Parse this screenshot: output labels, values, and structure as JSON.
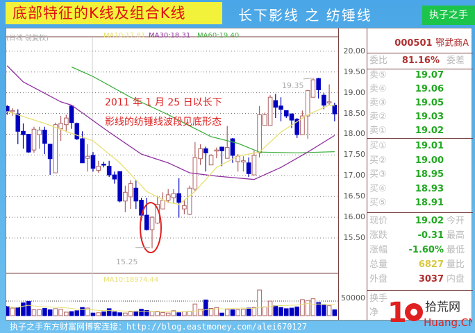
{
  "header": {
    "title": "底部特征的K线及组合K线",
    "subtitle": "长下影线 之 纺锤线",
    "tag_button": "执子之手"
  },
  "chart_header": {
    "period": "(日线 前复权)",
    "ma10": "MA10:17.81",
    "ma30": "MA30:18.31",
    "ma60": "MA60:19.40",
    "vol_ma": "MA10:18974.44"
  },
  "annotation": {
    "line1": "2011 年 1 月 25 日以长下",
    "line2": "影线的纺锤线波段见底形态",
    "low_label": "15.25",
    "high_label": "19.35"
  },
  "quote": {
    "code": "000501",
    "name": "鄂武商A",
    "wb_label": "委比",
    "wb_value": "81.16%",
    "wc_label": "委差",
    "sell": [
      {
        "label": "卖⑤",
        "price": "19.07"
      },
      {
        "label": "卖④",
        "price": "19.06"
      },
      {
        "label": "卖③",
        "price": "19.05"
      },
      {
        "label": "卖②",
        "price": "19.03"
      },
      {
        "label": "卖①",
        "price": "19.02"
      }
    ],
    "buy": [
      {
        "label": "买①",
        "price": "19.01"
      },
      {
        "label": "买②",
        "price": "19.00"
      },
      {
        "label": "买③",
        "price": "18.95"
      },
      {
        "label": "买④",
        "price": "18.93"
      },
      {
        "label": "买⑤",
        "price": "18.91"
      }
    ],
    "stats": [
      {
        "label": "现价",
        "value": "19.02",
        "right": "今开",
        "color": "#21a821"
      },
      {
        "label": "涨跌",
        "value": "-0.31",
        "right": "最高",
        "color": "#21a821"
      },
      {
        "label": "涨幅",
        "value": "-1.60%",
        "right": "最低",
        "color": "#21a821"
      },
      {
        "label": "总量",
        "value": "6827",
        "right": "量比",
        "color": "#d8c840"
      },
      {
        "label": "外盘",
        "value": "3037",
        "right": "内盘",
        "color": "#b03030"
      }
    ],
    "extra": [
      {
        "label": "换手"
      },
      {
        "label": "净"
      }
    ]
  },
  "footer": "执子之手东方财富网博客连接：http://blog.eastmoney.com/alei670127",
  "watermark": "10 拾荒网 Huang.CN",
  "colors": {
    "up": "#b06060",
    "down": "#0000c0",
    "ma10": "#e8e070",
    "ma30": "#9030a0",
    "ma60": "#40b040",
    "annotation": "#e02020"
  },
  "chart_data": {
    "type": "candlestick",
    "ylim": [
      15.2,
      20.08
    ],
    "yticks": [
      "20.00",
      "19.50",
      "19.00",
      "18.50",
      "18.00",
      "17.50",
      "17.00",
      "16.50",
      "16.00",
      "15.50"
    ],
    "vol_tick": "50000",
    "grid": true,
    "ohlc": [
      [
        18.67,
        18.7,
        18.47,
        18.56
      ],
      [
        18.57,
        18.63,
        18.44,
        18.57
      ],
      [
        18.49,
        18.6,
        17.76,
        18.07
      ],
      [
        18.07,
        18.26,
        17.65,
        17.99
      ],
      [
        18.0,
        18.0,
        17.55,
        17.57
      ],
      [
        17.62,
        18.18,
        17.55,
        18.12
      ],
      [
        17.99,
        18.18,
        17.65,
        18.1
      ],
      [
        18.1,
        18.18,
        17.52,
        17.78
      ],
      [
        17.76,
        17.76,
        17.02,
        17.41
      ],
      [
        17.07,
        18.28,
        17.07,
        18.23
      ],
      [
        18.13,
        18.44,
        17.84,
        18.26
      ],
      [
        18.23,
        18.47,
        18.05,
        18.39
      ],
      [
        18.68,
        18.7,
        18.13,
        18.28
      ],
      [
        18.26,
        18.28,
        17.86,
        17.89
      ],
      [
        17.89,
        18.07,
        17.31,
        17.31
      ],
      [
        17.42,
        17.76,
        17.1,
        17.47
      ],
      [
        17.49,
        17.57,
        17.1,
        17.18
      ],
      [
        17.13,
        17.36,
        17.07,
        17.23
      ],
      [
        17.28,
        17.34,
        17.2,
        17.26
      ],
      [
        17.23,
        17.36,
        16.97,
        17.02
      ],
      [
        17.02,
        17.1,
        16.81,
        16.92
      ],
      [
        17.1,
        17.1,
        16.36,
        16.39
      ],
      [
        16.39,
        16.76,
        16.12,
        16.6
      ],
      [
        16.49,
        16.89,
        16.2,
        16.81
      ],
      [
        16.7,
        16.89,
        16.2,
        16.39
      ],
      [
        16.41,
        16.47,
        15.92,
        16.05
      ],
      [
        16.05,
        16.47,
        15.68,
        15.7
      ],
      [
        15.7,
        16.02,
        15.25,
        16.0
      ],
      [
        15.86,
        16.52,
        15.84,
        16.31
      ],
      [
        16.2,
        16.6,
        16.2,
        16.41
      ],
      [
        16.41,
        16.68,
        16.34,
        16.54
      ],
      [
        16.47,
        16.68,
        16.34,
        16.57
      ],
      [
        16.57,
        16.94,
        15.99,
        16.36
      ],
      [
        16.2,
        16.41,
        16.07,
        16.28
      ],
      [
        16.07,
        16.76,
        16.05,
        16.7
      ],
      [
        16.68,
        17.81,
        16.63,
        17.44
      ],
      [
        17.41,
        17.76,
        17.26,
        17.65
      ],
      [
        17.65,
        17.7,
        17.1,
        17.55
      ],
      [
        17.26,
        17.52,
        17.26,
        17.49
      ],
      [
        17.6,
        17.68,
        17.42,
        17.62
      ],
      [
        17.69,
        17.69,
        17.23,
        17.6
      ],
      [
        17.42,
        18.2,
        17.42,
        17.68
      ],
      [
        17.89,
        17.91,
        17.31,
        17.49
      ],
      [
        17.34,
        17.52,
        17.1,
        17.47
      ],
      [
        17.33,
        17.47,
        17.1,
        17.36
      ],
      [
        17.31,
        17.44,
        16.97,
        17.05
      ],
      [
        17.02,
        17.6,
        17.02,
        17.49
      ],
      [
        17.55,
        18.68,
        17.44,
        18.47
      ],
      [
        18.21,
        18.52,
        18.21,
        18.47
      ],
      [
        18.21,
        18.94,
        18.21,
        18.89
      ],
      [
        18.81,
        18.97,
        18.39,
        18.65
      ],
      [
        18.68,
        18.89,
        18.31,
        18.6
      ],
      [
        18.57,
        18.57,
        18.39,
        18.44
      ],
      [
        18.49,
        18.49,
        18.15,
        18.34
      ],
      [
        18.36,
        18.39,
        17.91,
        17.99
      ],
      [
        17.99,
        18.57,
        17.99,
        18.44
      ],
      [
        18.44,
        19.07,
        17.89,
        19.05
      ],
      [
        18.89,
        19.35,
        18.89,
        19.31
      ],
      [
        19.34,
        19.36,
        18.86,
        19.07
      ],
      [
        18.94,
        18.99,
        18.6,
        18.7
      ],
      [
        18.76,
        19.2,
        18.7,
        18.78
      ],
      [
        18.7,
        18.76,
        18.31,
        18.49
      ]
    ],
    "volume": [
      32000,
      26000,
      28000,
      44000,
      49000,
      20000,
      21000,
      25000,
      20000,
      24000,
      22000,
      12000,
      14000,
      17000,
      28000,
      26000,
      9000,
      10000,
      13000,
      24000,
      13000,
      10000,
      9000,
      13000,
      15000,
      22000,
      18000,
      15000,
      13000,
      11000,
      9000,
      17000,
      10000,
      14000,
      15000,
      40000,
      22000,
      54000,
      25000,
      28000,
      9000,
      22000,
      20000,
      20000,
      22000,
      26000,
      28000,
      88000,
      30000,
      50000,
      34000,
      28000,
      24000,
      26000,
      30000,
      55000,
      52000,
      58000,
      45000,
      36000,
      34000,
      20000
    ],
    "ma10": [
      [
        1,
        18.55
      ],
      [
        8,
        18.26
      ],
      [
        13,
        18.02
      ],
      [
        17,
        17.84
      ],
      [
        22,
        17.31
      ],
      [
        27,
        16.62
      ],
      [
        31,
        16.36
      ],
      [
        33,
        16.31
      ],
      [
        36,
        16.62
      ],
      [
        40,
        17.2
      ],
      [
        44,
        17.47
      ],
      [
        48,
        17.57
      ],
      [
        52,
        18.05
      ],
      [
        57,
        18.47
      ],
      [
        61,
        18.7
      ],
      [
        62,
        18.68
      ]
    ],
    "ma30": [
      [
        1,
        19.65
      ],
      [
        4,
        19.26
      ],
      [
        11,
        18.78
      ],
      [
        13,
        18.7
      ],
      [
        20,
        18.05
      ],
      [
        26,
        17.52
      ],
      [
        31,
        17.31
      ],
      [
        35,
        17.07
      ],
      [
        40,
        16.99
      ],
      [
        47,
        16.91
      ],
      [
        52,
        17.2
      ],
      [
        57,
        17.57
      ],
      [
        62,
        17.97
      ]
    ],
    "ma60": [
      [
        13,
        19.62
      ],
      [
        17,
        19.39
      ],
      [
        24,
        18.89
      ],
      [
        31,
        18.47
      ],
      [
        35,
        18.2
      ],
      [
        39,
        17.94
      ],
      [
        44,
        17.78
      ],
      [
        48,
        17.57
      ],
      [
        55,
        17.55
      ],
      [
        62,
        17.58
      ]
    ]
  }
}
